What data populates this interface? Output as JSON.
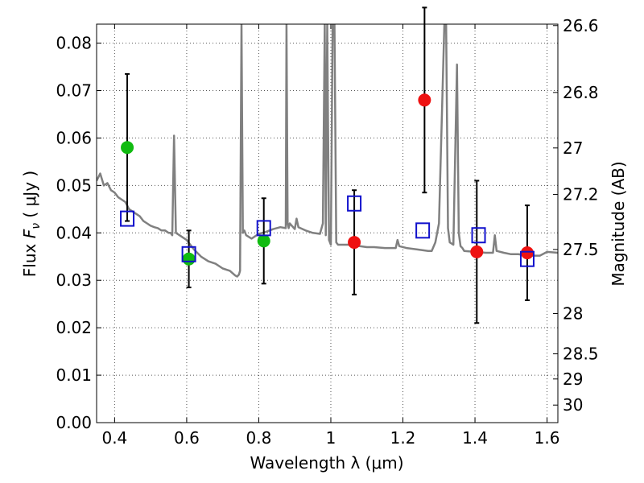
{
  "chart_data": {
    "type": "scatter",
    "xlabel": "Wavelength  λ (μm)",
    "ylabel": {
      "prefix": "Flux  ",
      "symbol_main": "F",
      "symbol_sub": "ν",
      "suffix": "  ( μJy )"
    },
    "y2label": "Magnitude (AB)",
    "xlim": [
      0.35,
      1.63
    ],
    "ylim": [
      0.0,
      0.084
    ],
    "grid": true,
    "x_ticks": [
      0.4,
      0.6,
      0.8,
      1.0,
      1.2,
      1.4,
      1.6
    ],
    "x_tick_labels": [
      "0.4",
      "0.6",
      "0.8",
      "1",
      "1.2",
      "1.4",
      "1.6"
    ],
    "y_ticks": [
      0.0,
      0.01,
      0.02,
      0.03,
      0.04,
      0.05,
      0.06,
      0.07,
      0.08
    ],
    "y_tick_labels": [
      "0.00",
      "0.01",
      "0.02",
      "0.03",
      "0.04",
      "0.05",
      "0.06",
      "0.07",
      "0.08"
    ],
    "y2_ticks": [
      {
        "label": "26.6",
        "flux": 0.0837
      },
      {
        "label": "26.8",
        "flux": 0.0696
      },
      {
        "label": "27",
        "flux": 0.0579
      },
      {
        "label": "27.2",
        "flux": 0.0481
      },
      {
        "label": "27.5",
        "flux": 0.0365
      },
      {
        "label": "28",
        "flux": 0.023
      },
      {
        "label": "28.5",
        "flux": 0.0145
      },
      {
        "label": "29",
        "flux": 0.0092
      },
      {
        "label": "30",
        "flux": 0.0037
      }
    ],
    "colors": {
      "spectrum": "#808080",
      "green": "#11bb11",
      "red": "#ee1111",
      "model": "#1111cc",
      "errorbar": "#000000",
      "grid": "#555555"
    },
    "series": [
      {
        "marker": "circle",
        "color": "green",
        "points": [
          {
            "x": 0.435,
            "y": 0.058,
            "err": 0.0155
          },
          {
            "x": 0.606,
            "y": 0.0345,
            "err": 0.006
          },
          {
            "x": 0.814,
            "y": 0.0383,
            "err": 0.009
          }
        ]
      },
      {
        "marker": "circle",
        "color": "red",
        "points": [
          {
            "x": 1.065,
            "y": 0.038,
            "err": 0.011
          },
          {
            "x": 1.26,
            "y": 0.068,
            "err": 0.0195
          },
          {
            "x": 1.405,
            "y": 0.036,
            "err": 0.015
          },
          {
            "x": 1.545,
            "y": 0.0358,
            "err": 0.01
          }
        ]
      },
      {
        "marker": "open-square",
        "color": "model",
        "points": [
          {
            "x": 0.435,
            "y": 0.043
          },
          {
            "x": 0.606,
            "y": 0.0355
          },
          {
            "x": 0.814,
            "y": 0.041
          },
          {
            "x": 1.065,
            "y": 0.0462
          },
          {
            "x": 1.255,
            "y": 0.0405
          },
          {
            "x": 1.41,
            "y": 0.0395
          },
          {
            "x": 1.545,
            "y": 0.0345
          }
        ]
      }
    ],
    "spectrum": {
      "x": [
        0.35,
        0.36,
        0.37,
        0.38,
        0.39,
        0.4,
        0.41,
        0.42,
        0.43,
        0.44,
        0.45,
        0.46,
        0.47,
        0.48,
        0.49,
        0.5,
        0.51,
        0.52,
        0.53,
        0.54,
        0.55,
        0.555,
        0.56,
        0.565,
        0.57,
        0.58,
        0.59,
        0.6,
        0.62,
        0.64,
        0.66,
        0.68,
        0.7,
        0.72,
        0.735,
        0.74,
        0.745,
        0.748,
        0.752,
        0.756,
        0.76,
        0.765,
        0.78,
        0.8,
        0.82,
        0.84,
        0.86,
        0.875,
        0.877,
        0.88,
        0.883,
        0.886,
        0.9,
        0.905,
        0.91,
        0.93,
        0.95,
        0.97,
        0.978,
        0.983,
        0.986,
        0.99,
        0.995,
        1.0,
        1.005,
        1.01,
        1.015,
        1.02,
        1.05,
        1.08,
        1.1,
        1.12,
        1.15,
        1.18,
        1.185,
        1.19,
        1.21,
        1.24,
        1.27,
        1.28,
        1.29,
        1.3,
        1.315,
        1.32,
        1.325,
        1.33,
        1.34,
        1.35,
        1.355,
        1.36,
        1.365,
        1.37,
        1.4,
        1.43,
        1.45,
        1.455,
        1.46,
        1.48,
        1.5,
        1.52,
        1.55,
        1.58,
        1.6,
        1.63
      ],
      "y": [
        0.051,
        0.0525,
        0.05,
        0.0505,
        0.049,
        0.0485,
        0.0475,
        0.047,
        0.0465,
        0.045,
        0.0445,
        0.044,
        0.0435,
        0.0425,
        0.042,
        0.0415,
        0.0412,
        0.041,
        0.0405,
        0.0405,
        0.04,
        0.04,
        0.0395,
        0.0605,
        0.04,
        0.0395,
        0.039,
        0.0385,
        0.0365,
        0.035,
        0.034,
        0.0335,
        0.0325,
        0.032,
        0.031,
        0.0308,
        0.0312,
        0.032,
        0.084,
        0.04,
        0.0405,
        0.0395,
        0.0388,
        0.0398,
        0.0402,
        0.0408,
        0.0412,
        0.041,
        0.084,
        0.042,
        0.041,
        0.042,
        0.0408,
        0.043,
        0.0412,
        0.0405,
        0.04,
        0.0398,
        0.042,
        0.084,
        0.0395,
        0.084,
        0.0385,
        0.0375,
        0.084,
        0.084,
        0.038,
        0.0375,
        0.0375,
        0.0372,
        0.037,
        0.037,
        0.0368,
        0.0368,
        0.0385,
        0.0372,
        0.0368,
        0.0365,
        0.0362,
        0.0362,
        0.038,
        0.042,
        0.084,
        0.084,
        0.041,
        0.038,
        0.0375,
        0.0755,
        0.04,
        0.0372,
        0.0368,
        0.0362,
        0.036,
        0.0358,
        0.0358,
        0.0395,
        0.0362,
        0.0358,
        0.0355,
        0.0355,
        0.0352,
        0.0352,
        0.036,
        0.0358
      ]
    }
  }
}
